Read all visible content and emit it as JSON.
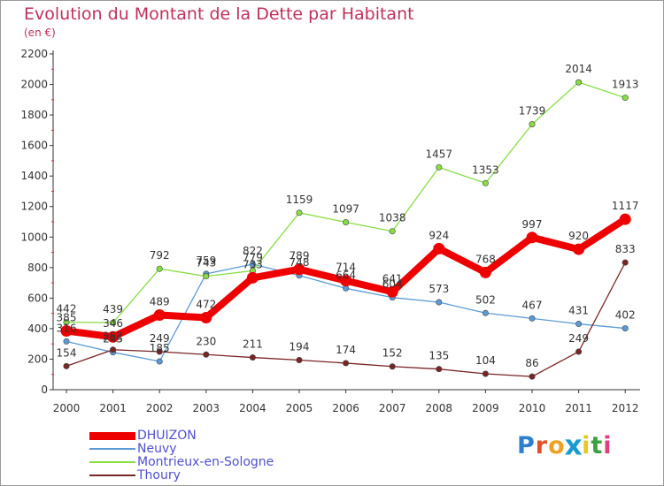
{
  "title": "Evolution du Montant de la Dette par Habitant",
  "unit": "(en €)",
  "logo": {
    "text": "Proxiti",
    "letter_colors": [
      "#2f7fd0",
      "#e0502a",
      "#f0a020",
      "#1a9ad0",
      "#e8c820",
      "#3aa040",
      "#e04080"
    ]
  },
  "chart_data": {
    "type": "line",
    "title": "Evolution du Montant de la Dette par Habitant",
    "ylabel": "(en €)",
    "xlabel": "",
    "x": [
      "2000",
      "2001",
      "2002",
      "2003",
      "2004",
      "2005",
      "2006",
      "2007",
      "2008",
      "2009",
      "2010",
      "2011",
      "2012"
    ],
    "ylim": [
      0,
      2200
    ],
    "yticks": [
      0,
      200,
      400,
      600,
      800,
      1000,
      1200,
      1400,
      1600,
      1800,
      2000,
      2200
    ],
    "grid": false,
    "legend_position": "bottom-left",
    "series": [
      {
        "name": "DHUIZON",
        "color": "#ee0000",
        "emphasis": true,
        "values": [
          385,
          346,
          489,
          472,
          733,
          789,
          714,
          641,
          924,
          768,
          997,
          920,
          1117
        ]
      },
      {
        "name": "Neuvy",
        "color": "#5b9bd5",
        "values": [
          316,
          245,
          185,
          759,
          822,
          748,
          664,
          604,
          573,
          502,
          467,
          431,
          402
        ]
      },
      {
        "name": "Montrieux-en-Sologne",
        "color": "#88dd44",
        "values": [
          442,
          439,
          792,
          743,
          779,
          1159,
          1097,
          1038,
          1457,
          1353,
          1739,
          2014,
          1913
        ]
      },
      {
        "name": "Thoury",
        "color": "#7a2424",
        "values": [
          154,
          262,
          249,
          230,
          211,
          194,
          174,
          152,
          135,
          104,
          86,
          249,
          833
        ]
      }
    ]
  }
}
